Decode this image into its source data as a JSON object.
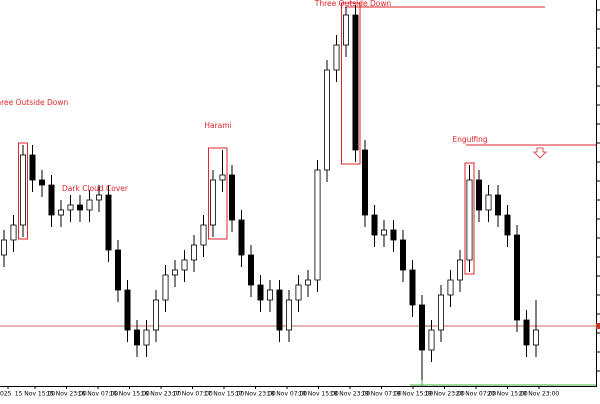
{
  "chart_data": {
    "type": "candlestick",
    "ylim": [
      0,
      385
    ],
    "bull_color": "#ffffff",
    "bear_color": "#000000",
    "outline_color": "#000000",
    "open": [
      130,
      145,
      160,
      230,
      205,
      200,
      170,
      175,
      180,
      175,
      185,
      190,
      135,
      95,
      55,
      40,
      55,
      85,
      110,
      115,
      125,
      140,
      160,
      205,
      210,
      165,
      130,
      100,
      85,
      95,
      55,
      85,
      100,
      105,
      215,
      315,
      340,
      370,
      235,
      170,
      150,
      155,
      145,
      115,
      80,
      35,
      55,
      90,
      105,
      125,
      205,
      175,
      190,
      170,
      150,
      65,
      40
    ],
    "high": [
      155,
      170,
      240,
      240,
      215,
      210,
      185,
      190,
      190,
      195,
      200,
      200,
      145,
      105,
      65,
      65,
      95,
      120,
      125,
      135,
      150,
      170,
      215,
      235,
      220,
      175,
      140,
      110,
      105,
      105,
      95,
      110,
      115,
      225,
      325,
      350,
      378,
      380,
      245,
      180,
      165,
      165,
      155,
      125,
      90,
      65,
      100,
      115,
      135,
      220,
      215,
      200,
      200,
      180,
      160,
      75,
      85
    ],
    "low": [
      118,
      133,
      148,
      193,
      188,
      158,
      158,
      163,
      163,
      163,
      173,
      123,
      83,
      43,
      28,
      28,
      43,
      73,
      98,
      103,
      113,
      128,
      148,
      193,
      153,
      118,
      88,
      73,
      73,
      43,
      43,
      73,
      88,
      93,
      203,
      303,
      328,
      223,
      158,
      138,
      138,
      133,
      103,
      68,
      5,
      23,
      43,
      78,
      93,
      113,
      163,
      163,
      158,
      138,
      53,
      28,
      28
    ],
    "close": [
      145,
      160,
      230,
      205,
      200,
      170,
      175,
      180,
      175,
      185,
      190,
      135,
      95,
      55,
      40,
      55,
      85,
      110,
      115,
      125,
      140,
      160,
      205,
      210,
      165,
      130,
      100,
      85,
      95,
      55,
      85,
      100,
      105,
      215,
      315,
      340,
      370,
      235,
      170,
      150,
      155,
      145,
      115,
      80,
      35,
      55,
      90,
      105,
      125,
      205,
      175,
      190,
      170,
      150,
      65,
      40,
      55
    ],
    "hline": {
      "value": 59,
      "color": "#c0392b"
    },
    "x_labels": [
      "025",
      "15 Nov 15:00",
      "15 Nov 23:00",
      "16 Nov 07:00",
      "16 Nov 15:00",
      "16 Nov 23:00",
      "17 Nov 07:00",
      "17 Nov 15:00",
      "17 Nov 23:00",
      "18 Nov 07:00",
      "18 Nov 15:00",
      "18 Nov 23:00",
      "19 Nov 07:00",
      "19 Nov 15:00",
      "19 Nov 23:00",
      "20 Nov 07:00",
      "20 Nov 15:00",
      "20 Nov 23:00"
    ],
    "patterns": [
      {
        "label": "Three Outside Down"
      },
      {
        "label": "Dark Cloud Cover"
      },
      {
        "label": "Harami"
      },
      {
        "label": "Three Outside Down"
      },
      {
        "label": "Engulfing"
      }
    ]
  }
}
